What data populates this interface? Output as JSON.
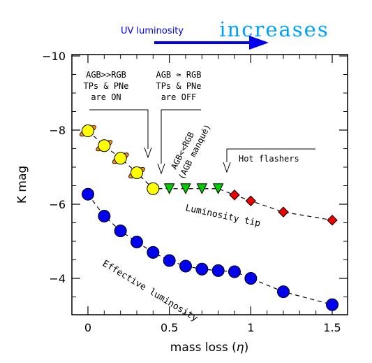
{
  "chart_data": {
    "type": "scatter",
    "title": "",
    "xlabel": "mass loss (",
    "xlabel_symbol": "η",
    "xlabel_close": ")",
    "ylabel": "K mag",
    "xlim": [
      -0.1,
      1.6
    ],
    "ylim": [
      -3.0,
      -10.0
    ],
    "y_axis_inverted": true,
    "x_ticks": [
      0,
      0.5,
      1,
      1.5
    ],
    "x_tick_labels": [
      "0",
      "0.5",
      "1",
      "1.5"
    ],
    "y_ticks": [
      -4,
      -6,
      -8,
      -10
    ],
    "y_tick_labels": [
      "−4",
      "−6",
      "−8",
      "−10"
    ],
    "grid": false,
    "legend": "none",
    "series": [
      {
        "name": "Luminosity tip",
        "connector": "dashed",
        "segments": [
          {
            "marker": "ringed-circle",
            "color": "#ffff00",
            "ring_color": "#ff8c00",
            "x": [
              0,
              0.1,
              0.2,
              0.3
            ],
            "y": [
              -7.98,
              -7.58,
              -7.24,
              -6.85
            ]
          },
          {
            "marker": "circle",
            "color": "#ffff00",
            "x": [
              0.4
            ],
            "y": [
              -6.42
            ]
          },
          {
            "marker": "triangle-down",
            "color": "#00cc00",
            "x": [
              0.5,
              0.6,
              0.7,
              0.8
            ],
            "y": [
              -6.42,
              -6.42,
              -6.42,
              -6.42
            ]
          },
          {
            "marker": "diamond",
            "color": "#ee0000",
            "x": [
              0.9,
              1.0,
              1.2,
              1.5
            ],
            "y": [
              -6.25,
              -6.09,
              -5.79,
              -5.57
            ]
          }
        ]
      },
      {
        "name": "Effective luminosity",
        "connector": "dashed",
        "segments": [
          {
            "marker": "circle",
            "color": "#0000ee",
            "x": [
              0,
              0.1,
              0.2,
              0.3,
              0.4,
              0.5,
              0.6,
              0.7,
              0.8,
              0.9,
              1.0,
              1.2,
              1.5
            ],
            "y": [
              -6.27,
              -5.68,
              -5.28,
              -4.98,
              -4.7,
              -4.48,
              -4.33,
              -4.25,
              -4.21,
              -4.18,
              -4.0,
              -3.64,
              -3.29
            ]
          }
        ]
      }
    ],
    "annotations": {
      "uv_small": "UV luminosity",
      "uv_big": "increases",
      "region1_line1": "AGB>>RGB",
      "region1_line2": "TPs & PNe",
      "region1_line3": "are ON",
      "region2_line1": "AGB ≃ RGB",
      "region2_line2": "TPs & PNe",
      "region2_line3": "are OFF",
      "region3_line1": "AGB<<RGB",
      "region3_line2": "(AGB manqué)",
      "region4": "Hot flashers",
      "label_tip": "Luminosity tip",
      "label_eff": "Effective luminosity"
    },
    "colors": {
      "arrow": "#0000ee",
      "uv_text": "#0000ee"
    }
  }
}
